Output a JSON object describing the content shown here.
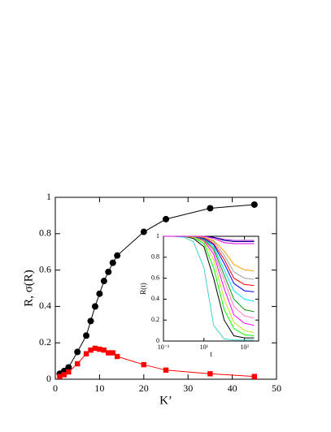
{
  "chart_data": [
    {
      "type": "line",
      "xlabel": "K’",
      "ylabel": "R, σ(R)",
      "xlim": [
        0,
        50
      ],
      "ylim": [
        0,
        1
      ],
      "xticks": [
        0,
        10,
        20,
        30,
        40,
        50
      ],
      "yticks": [
        0,
        0.2,
        0.4,
        0.6,
        0.8,
        1
      ],
      "series": [
        {
          "marker": "circle",
          "color": "#000000",
          "x": [
            1,
            2,
            3,
            5,
            7,
            8,
            9,
            10,
            11,
            12,
            13,
            14,
            20,
            25,
            35,
            45
          ],
          "values": [
            0.03,
            0.045,
            0.065,
            0.15,
            0.24,
            0.32,
            0.4,
            0.47,
            0.54,
            0.59,
            0.64,
            0.68,
            0.81,
            0.88,
            0.94,
            0.96
          ]
        },
        {
          "marker": "square",
          "color": "#ff0000",
          "x": [
            1,
            2,
            3,
            5,
            7,
            8,
            9,
            10,
            11,
            12,
            13,
            14,
            20,
            25,
            35,
            45
          ],
          "values": [
            0.015,
            0.025,
            0.04,
            0.085,
            0.14,
            0.16,
            0.17,
            0.165,
            0.16,
            0.145,
            0.145,
            0.125,
            0.08,
            0.05,
            0.03,
            0.015
          ]
        }
      ]
    },
    {
      "type": "line",
      "xlabel": "t",
      "ylabel": "R(t)",
      "xscale": "log",
      "xlim": [
        0.1,
        5000
      ],
      "ylim": [
        0,
        1
      ],
      "xticks": [
        {
          "value": 0.1,
          "label": "10⁻¹"
        },
        {
          "value": 10,
          "label": "10¹"
        },
        {
          "value": 1000,
          "label": "10³"
        }
      ],
      "yticks": [
        0,
        0.2,
        0.4,
        0.6,
        0.8,
        1
      ],
      "x": [
        0.1,
        0.3,
        1,
        3,
        10,
        30,
        100,
        300,
        1000,
        3000
      ],
      "series": [
        {
          "color": "#40d0d0",
          "values": [
            1,
            1,
            0.99,
            0.95,
            0.7,
            0.15,
            0.02,
            0.01,
            0.01,
            0.01
          ]
        },
        {
          "color": "#000000",
          "values": [
            1,
            1,
            1,
            0.98,
            0.9,
            0.6,
            0.2,
            0.05,
            0.03,
            0.03
          ]
        },
        {
          "color": "#00ff00",
          "values": [
            1,
            1,
            1,
            0.99,
            0.93,
            0.7,
            0.3,
            0.12,
            0.06,
            0.05
          ]
        },
        {
          "color": "#c0e020",
          "values": [
            1,
            1,
            1,
            0.99,
            0.95,
            0.78,
            0.4,
            0.18,
            0.1,
            0.08
          ]
        },
        {
          "color": "#ff00ff",
          "values": [
            1,
            1,
            1,
            1,
            0.96,
            0.83,
            0.5,
            0.25,
            0.17,
            0.15
          ]
        },
        {
          "color": "#ff80c0",
          "values": [
            1,
            1,
            1,
            1,
            0.97,
            0.86,
            0.58,
            0.33,
            0.24,
            0.22
          ]
        },
        {
          "color": "#00a000",
          "values": [
            1,
            1,
            1,
            1,
            0.97,
            0.88,
            0.63,
            0.4,
            0.3,
            0.28
          ]
        },
        {
          "color": "#00e0ff",
          "values": [
            1,
            1,
            1,
            1,
            0.98,
            0.9,
            0.68,
            0.48,
            0.4,
            0.38
          ]
        },
        {
          "color": "#0000ff",
          "values": [
            1,
            1,
            1,
            1,
            0.98,
            0.92,
            0.74,
            0.55,
            0.48,
            0.47
          ]
        },
        {
          "color": "#ff0000",
          "values": [
            1,
            1,
            1,
            1,
            0.99,
            0.93,
            0.78,
            0.6,
            0.54,
            0.53
          ]
        },
        {
          "color": "#a0a0a0",
          "values": [
            1,
            1,
            1,
            1,
            0.99,
            0.95,
            0.82,
            0.66,
            0.6,
            0.59
          ]
        },
        {
          "color": "#ffa000",
          "values": [
            1,
            1,
            1,
            1,
            0.99,
            0.96,
            0.86,
            0.73,
            0.68,
            0.67
          ]
        },
        {
          "color": "#9400d3",
          "values": [
            1,
            1,
            1,
            1,
            1,
            0.99,
            0.97,
            0.96,
            0.96,
            0.96
          ]
        },
        {
          "color": "#000080",
          "values": [
            1,
            1,
            1,
            1,
            1,
            0.99,
            0.96,
            0.95,
            0.95,
            0.95
          ]
        },
        {
          "color": "#e000e0",
          "values": [
            1,
            1,
            1,
            1,
            1,
            0.98,
            0.94,
            0.93,
            0.93,
            0.93
          ]
        }
      ]
    }
  ]
}
